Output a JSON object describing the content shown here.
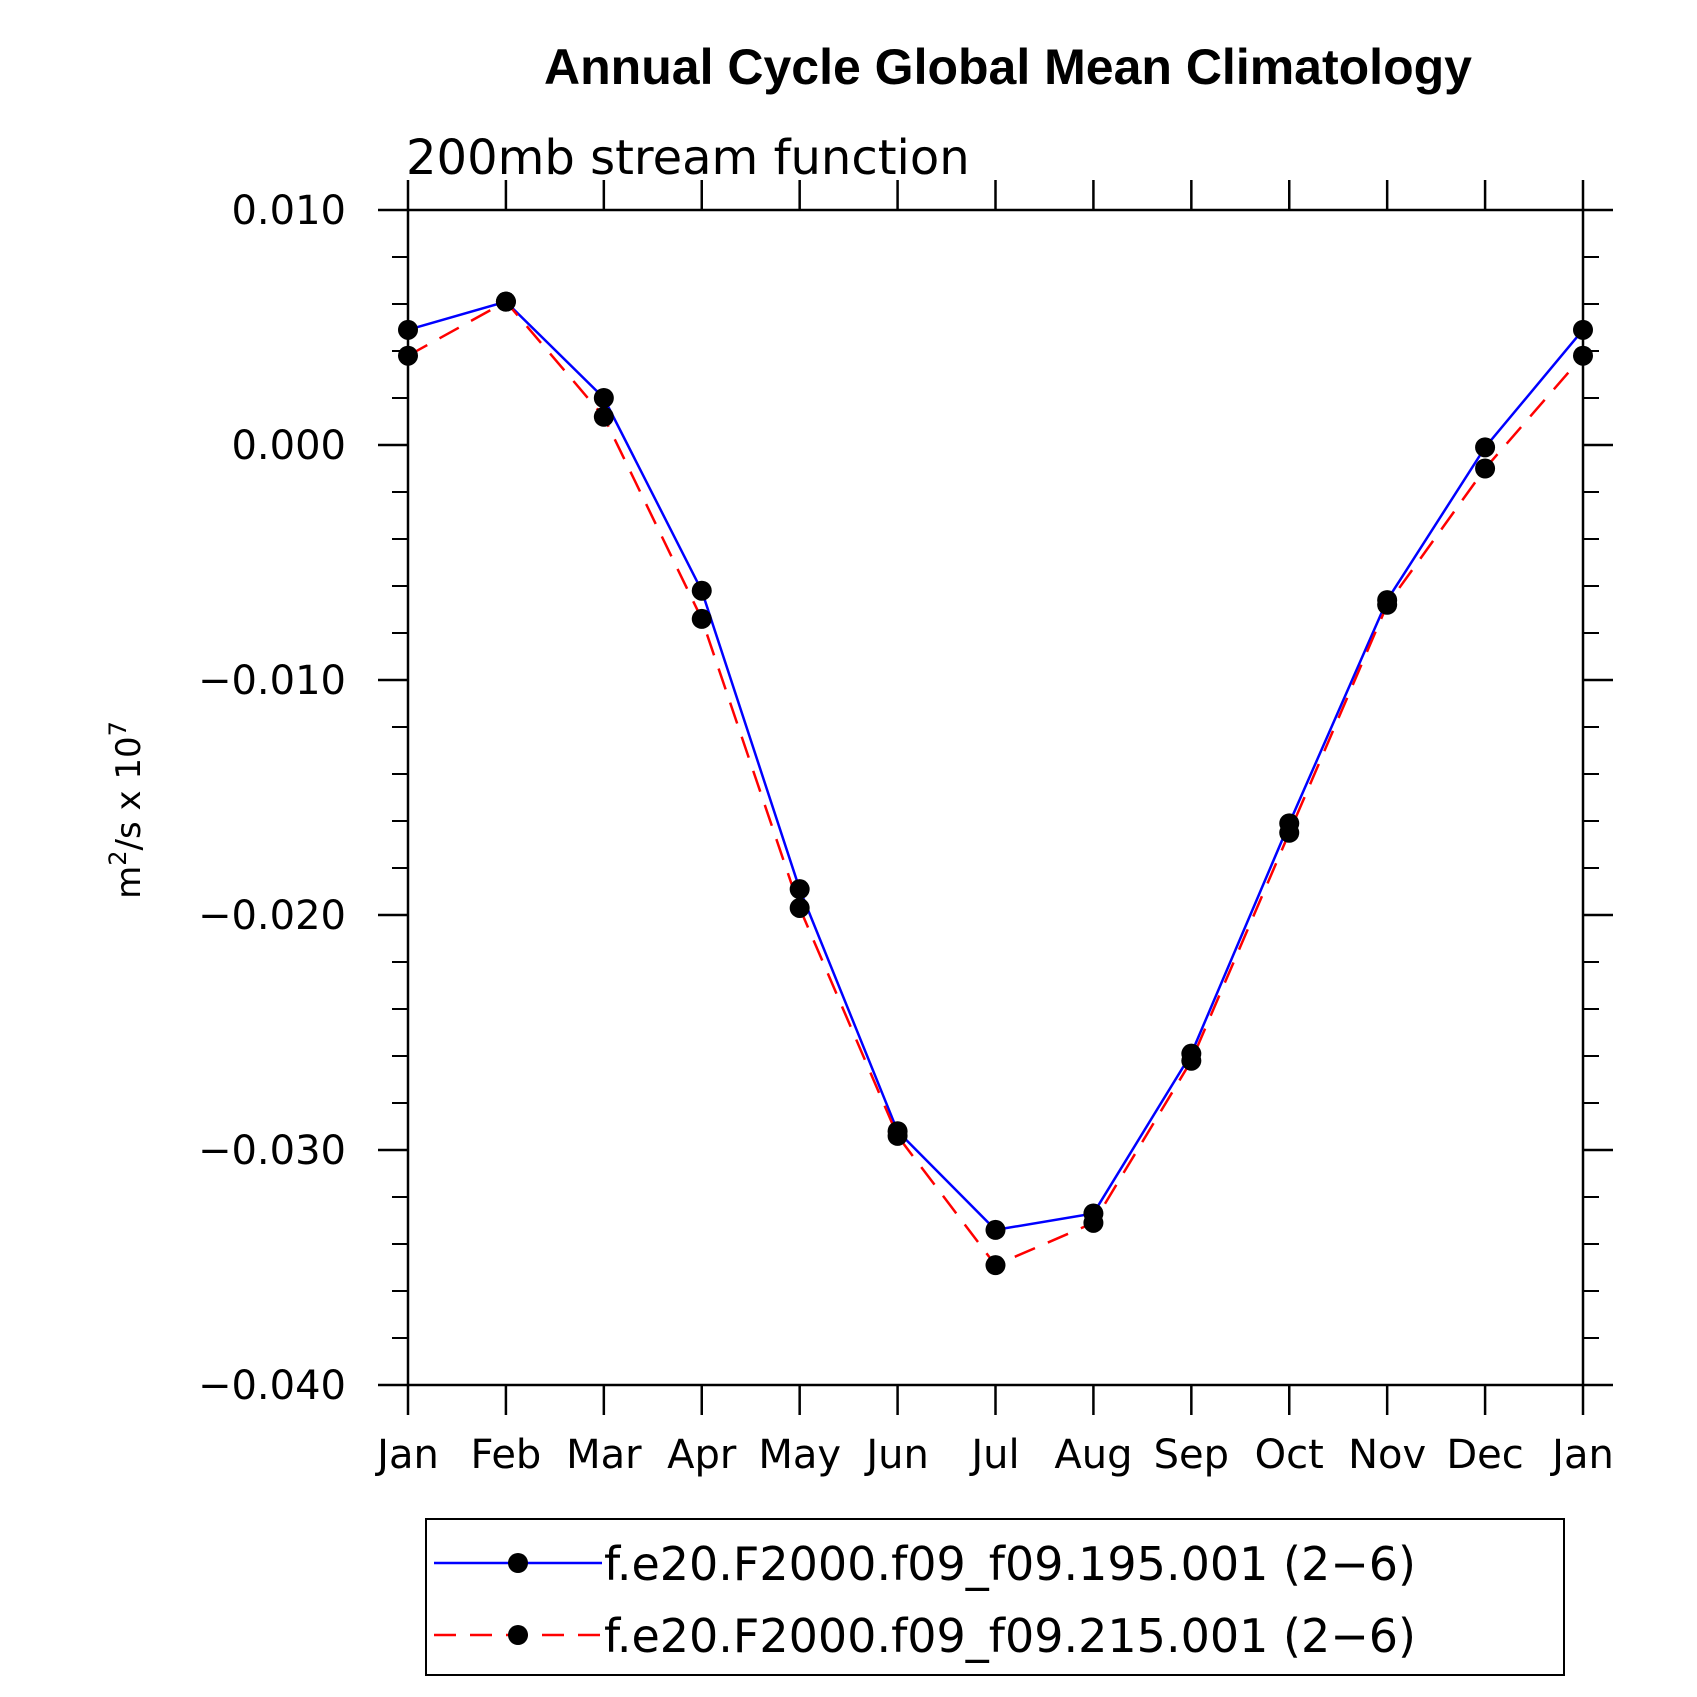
{
  "chart_data": {
    "type": "line",
    "title": "Annual Cycle Global Mean Climatology",
    "subtitle": "200mb stream function",
    "ylabel_base": "m",
    "ylabel_sup1": "2",
    "ylabel_mid": "/s x 10",
    "ylabel_sup2": "7",
    "xlabel": "",
    "categories": [
      "Jan",
      "Feb",
      "Mar",
      "Apr",
      "May",
      "Jun",
      "Jul",
      "Aug",
      "Sep",
      "Oct",
      "Nov",
      "Dec",
      "Jan"
    ],
    "ylim": [
      -0.04,
      0.01
    ],
    "yticks": [
      0.01,
      0.0,
      -0.01,
      -0.02,
      -0.03,
      -0.04
    ],
    "ytick_labels": [
      "0.010",
      "0.000",
      "−0.010",
      "−0.020",
      "−0.030",
      "−0.040"
    ],
    "y_minor_step": 0.002,
    "grid": false,
    "legend_position": "bottom",
    "series": [
      {
        "name": "f.e20.F2000.f09_f09.195.001 (2−6)",
        "color": "#0000ff",
        "dash": "solid",
        "values": [
          0.0049,
          0.0061,
          0.002,
          -0.0062,
          -0.0189,
          -0.0292,
          -0.0334,
          -0.0327,
          -0.0259,
          -0.0161,
          -0.0066,
          -0.0001,
          0.0049
        ]
      },
      {
        "name": "f.e20.F2000.f09_f09.215.001 (2−6)",
        "color": "#ff0000",
        "dash": "dashed",
        "values": [
          0.0038,
          0.0061,
          0.0012,
          -0.0074,
          -0.0197,
          -0.0294,
          -0.0349,
          -0.0331,
          -0.0262,
          -0.0165,
          -0.0068,
          -0.001,
          0.0038
        ]
      }
    ]
  }
}
